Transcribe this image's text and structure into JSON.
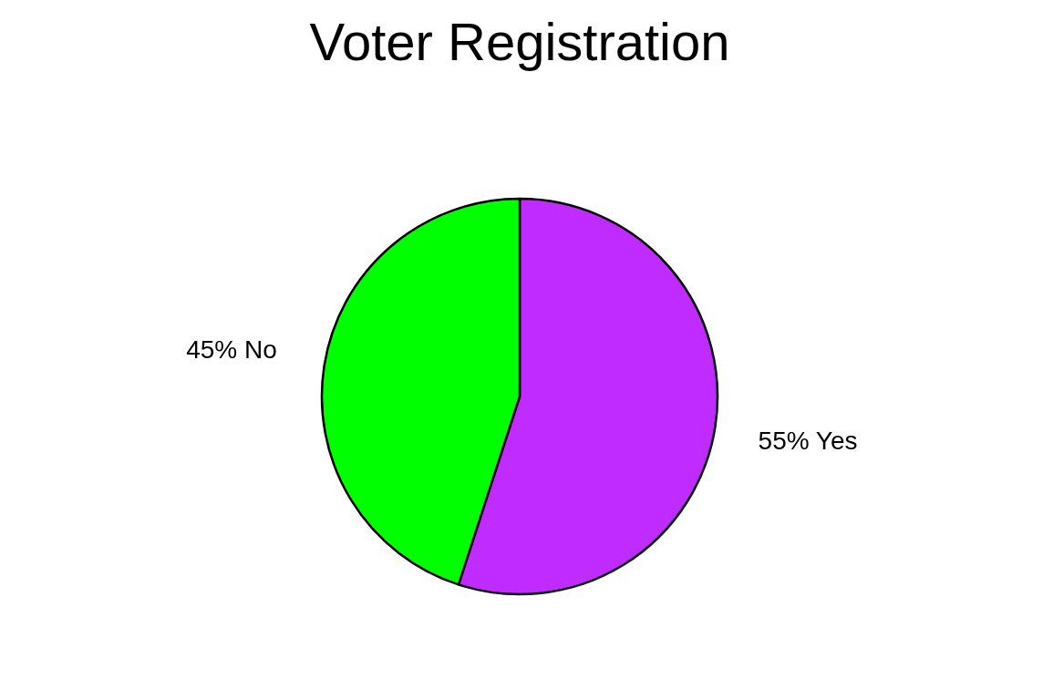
{
  "chart_data": {
    "type": "pie",
    "title": "Voter Registration",
    "categories": [
      "Yes",
      "No"
    ],
    "values": [
      55,
      45
    ],
    "colors": [
      "#c02cff",
      "#00ff00"
    ],
    "value_labels": [
      "55%",
      "45%"
    ]
  }
}
